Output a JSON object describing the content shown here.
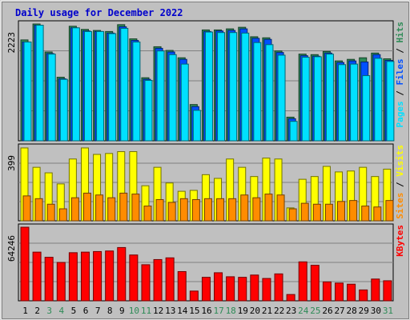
{
  "chart_data": {
    "type": "bar",
    "title": "Daily usage for December 2022",
    "days": [
      "1",
      "2",
      "3",
      "4",
      "5",
      "6",
      "7",
      "8",
      "9",
      "10",
      "11",
      "12",
      "13",
      "14",
      "15",
      "16",
      "17",
      "18",
      "19",
      "20",
      "21",
      "22",
      "23",
      "24",
      "25",
      "26",
      "27",
      "28",
      "29",
      "30",
      "31"
    ],
    "weekend_days": [
      "3",
      "4",
      "10",
      "11",
      "17",
      "18",
      "24",
      "25",
      "31"
    ],
    "panels": [
      {
        "name": "pages-files-hits",
        "ymax_label": "2223",
        "ymax": 2223,
        "legend": [
          {
            "text": "Pages",
            "color": "#00e0ff"
          },
          {
            "text": " / ",
            "color": "#000000"
          },
          {
            "text": "Files",
            "color": "#0050ff"
          },
          {
            "text": " / ",
            "color": "#000000"
          },
          {
            "text": "Hits",
            "color": "#2e8b57"
          }
        ],
        "series": [
          {
            "name": "Hits",
            "color": "#2e8b57",
            "values": [
              1920,
              2223,
              1690,
              1210,
              2180,
              2120,
              2100,
              2080,
              2210,
              1940,
              1200,
              1790,
              1720,
              1580,
              690,
              2110,
              2110,
              2130,
              2160,
              1980,
              1960,
              1710,
              450,
              1650,
              1640,
              1700,
              1520,
              1550,
              1580,
              1670,
              1560
            ]
          },
          {
            "name": "Files",
            "color": "#0050ff",
            "values": [
              1880,
              2200,
              1660,
              1180,
              2150,
              2090,
              2080,
              2050,
              2170,
              1910,
              1170,
              1760,
              1690,
              1550,
              650,
              2080,
              2090,
              2100,
              2130,
              1950,
              1930,
              1680,
              420,
              1620,
              1610,
              1670,
              1490,
              1520,
              1500,
              1640,
              1530
            ]
          },
          {
            "name": "Pages",
            "color": "#00e0ff",
            "values": [
              1880,
              2200,
              1650,
              1170,
              2150,
              2080,
              2080,
              2040,
              2140,
              1880,
              1150,
              1710,
              1640,
              1460,
              580,
              2070,
              2060,
              2060,
              2050,
              1870,
              1830,
              1630,
              370,
              1590,
              1600,
              1650,
              1450,
              1460,
              1240,
              1570,
              1510
            ]
          }
        ]
      },
      {
        "name": "sites-visits",
        "ymax_label": "399",
        "ymax": 399,
        "legend": [
          {
            "text": "Sites",
            "color": "#ff8c00"
          },
          {
            "text": " / ",
            "color": "#000000"
          },
          {
            "text": "Visits",
            "color": "#ffff00"
          }
        ],
        "series": [
          {
            "name": "Visits",
            "color": "#ffff00",
            "values": [
              395,
              290,
              260,
              200,
              335,
              395,
              360,
              365,
              375,
              375,
              190,
              290,
              205,
              160,
              165,
              250,
              230,
              335,
              290,
              240,
              340,
              335,
              70,
              225,
              240,
              295,
              265,
              270,
              290,
              240,
              280
            ]
          },
          {
            "name": "Sites",
            "color": "#ff8c00",
            "values": [
              135,
              120,
              90,
              65,
              125,
              150,
              140,
              125,
              150,
              145,
              80,
              115,
              100,
              120,
              115,
              120,
              120,
              120,
              140,
              125,
              145,
              140,
              65,
              95,
              90,
              90,
              105,
              110,
              80,
              75,
              110
            ]
          }
        ]
      },
      {
        "name": "kbytes",
        "ymax_label": "64246",
        "ymax": 64246,
        "legend": [
          {
            "text": "KBytes",
            "color": "#ff0000"
          }
        ],
        "series": [
          {
            "name": "KBytes",
            "color": "#ff0000",
            "values": [
              64246,
              42500,
              38000,
              33500,
              42000,
              42500,
              43000,
              43500,
              46500,
              40000,
              31500,
              36000,
              37500,
              25500,
              8500,
              20500,
              24500,
              21000,
              20500,
              22500,
              19500,
              23500,
              5500,
              34000,
              31000,
              16500,
              15500,
              14500,
              9500,
              19000,
              17500
            ]
          }
        ]
      }
    ]
  }
}
